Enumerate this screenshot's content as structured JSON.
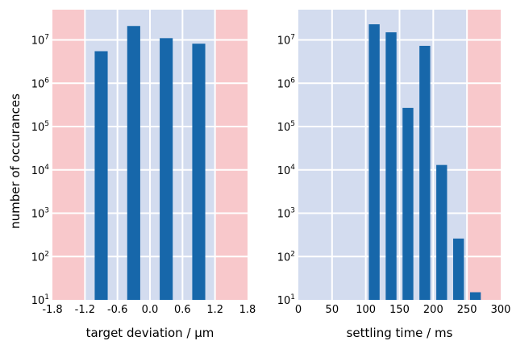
{
  "ylabel": "number of occurances",
  "colors": {
    "background": "#d3dcef",
    "forbidden": "#f8c8cb",
    "bar": "#1767aa",
    "grid": "#ffffff"
  },
  "chart_data": [
    {
      "type": "bar",
      "xlabel": "target deviation / µm",
      "ylabel": "number of occurances",
      "y_scale": "log",
      "ylim": [
        10,
        50000000
      ],
      "xlim": [
        -1.8,
        1.8
      ],
      "x_ticks": [
        -1.8,
        -1.2,
        -0.6,
        0.0,
        0.6,
        1.2,
        1.8
      ],
      "x_tick_labels": [
        "-1.8",
        "-1.2",
        "-0.6",
        "0.0",
        "0.6",
        "1.2",
        "1.8"
      ],
      "y_ticks": [
        10,
        100,
        1000,
        10000,
        100000,
        1000000,
        10000000
      ],
      "y_tick_labels": [
        {
          "base": "10",
          "exp": "1"
        },
        {
          "base": "10",
          "exp": "2"
        },
        {
          "base": "10",
          "exp": "3"
        },
        {
          "base": "10",
          "exp": "4"
        },
        {
          "base": "10",
          "exp": "5"
        },
        {
          "base": "10",
          "exp": "6"
        },
        {
          "base": "10",
          "exp": "7"
        }
      ],
      "shaded_regions": [
        [
          -1.8,
          -1.2
        ],
        [
          1.2,
          1.8
        ]
      ],
      "bar_width": 0.24,
      "x": [
        -0.9,
        -0.3,
        0.3,
        0.9
      ],
      "values": [
        5500000,
        21000000,
        11000000,
        8200000
      ],
      "grid": true
    },
    {
      "type": "bar",
      "xlabel": "settling time / ms",
      "y_scale": "log",
      "ylim": [
        10,
        50000000
      ],
      "xlim": [
        0,
        300
      ],
      "x_ticks": [
        0,
        50,
        100,
        150,
        200,
        250,
        300
      ],
      "x_tick_labels": [
        "0",
        "50",
        "100",
        "150",
        "200",
        "250",
        "300"
      ],
      "y_ticks": [
        10,
        100,
        1000,
        10000,
        100000,
        1000000,
        10000000
      ],
      "y_tick_labels": [
        {
          "base": "10",
          "exp": "1"
        },
        {
          "base": "10",
          "exp": "2"
        },
        {
          "base": "10",
          "exp": "3"
        },
        {
          "base": "10",
          "exp": "4"
        },
        {
          "base": "10",
          "exp": "5"
        },
        {
          "base": "10",
          "exp": "6"
        },
        {
          "base": "10",
          "exp": "7"
        }
      ],
      "shaded_regions": [
        [
          250,
          300
        ]
      ],
      "bar_width": 16,
      "x": [
        112.5,
        137.5,
        162.5,
        187.5,
        212.5,
        237.5,
        262.5
      ],
      "values": [
        23000000,
        15000000,
        270000,
        7300000,
        13000,
        260,
        15
      ],
      "grid": true
    }
  ]
}
